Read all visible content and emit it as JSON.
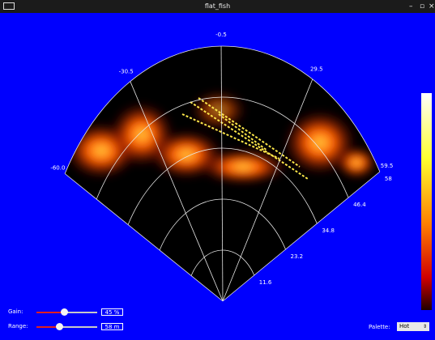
{
  "window": {
    "title": "flat_fish"
  },
  "sonar": {
    "bearings": [
      {
        "value": -60,
        "label": "-60.0"
      },
      -30.5,
      -0.5,
      29.5,
      59.5
    ],
    "ranges": [
      11.6,
      23.2,
      34.8,
      46.4,
      58
    ]
  },
  "controls": {
    "gain": {
      "label": "Gain:",
      "value": "45 %"
    },
    "range": {
      "label": "Range:",
      "value": "58 m"
    },
    "palette": {
      "label": "Palette:",
      "value": "Hot"
    }
  }
}
